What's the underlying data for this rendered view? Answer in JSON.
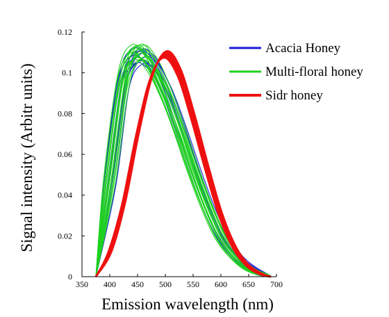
{
  "chart_data": {
    "type": "line",
    "xlabel": "Emission wavelength (nm)",
    "ylabel": "Signal intensity (Arbitr units)",
    "xlim": [
      350,
      700
    ],
    "ylim": [
      0,
      0.12
    ],
    "x_ticks": [
      "350",
      "400",
      "450",
      "500",
      "550",
      "600",
      "650",
      "700"
    ],
    "y_ticks": [
      "0",
      "0.02",
      "0.04",
      "0.06",
      "0.08",
      "0.1",
      "0.12"
    ],
    "grid": false,
    "legend_position": "top-right",
    "series": [
      {
        "name": "Acacia Honey",
        "color": "#1a1adc",
        "x": [
          375,
          400,
          425,
          450,
          475,
          500,
          525,
          550,
          575,
          600,
          625,
          650,
          675,
          690
        ],
        "values": [
          0,
          0.045,
          0.095,
          0.108,
          0.105,
          0.093,
          0.075,
          0.055,
          0.036,
          0.021,
          0.011,
          0.005,
          0.001,
          0
        ],
        "curve_count": 12
      },
      {
        "name": "Multi-floral honey",
        "color": "#1ed21e",
        "x": [
          375,
          400,
          425,
          450,
          475,
          500,
          525,
          550,
          575,
          600,
          625,
          650,
          675,
          690
        ],
        "values": [
          0,
          0.048,
          0.097,
          0.11,
          0.104,
          0.09,
          0.072,
          0.052,
          0.034,
          0.019,
          0.01,
          0.004,
          0.001,
          0
        ],
        "curve_count": 18
      },
      {
        "name": "Sidr honey",
        "color": "#ee1111",
        "x": [
          375,
          400,
          425,
          450,
          475,
          500,
          525,
          550,
          575,
          600,
          625,
          650,
          675,
          690
        ],
        "values": [
          0,
          0.012,
          0.036,
          0.07,
          0.098,
          0.109,
          0.1,
          0.078,
          0.053,
          0.03,
          0.014,
          0.005,
          0.001,
          0
        ],
        "curve_count": 10
      }
    ]
  }
}
